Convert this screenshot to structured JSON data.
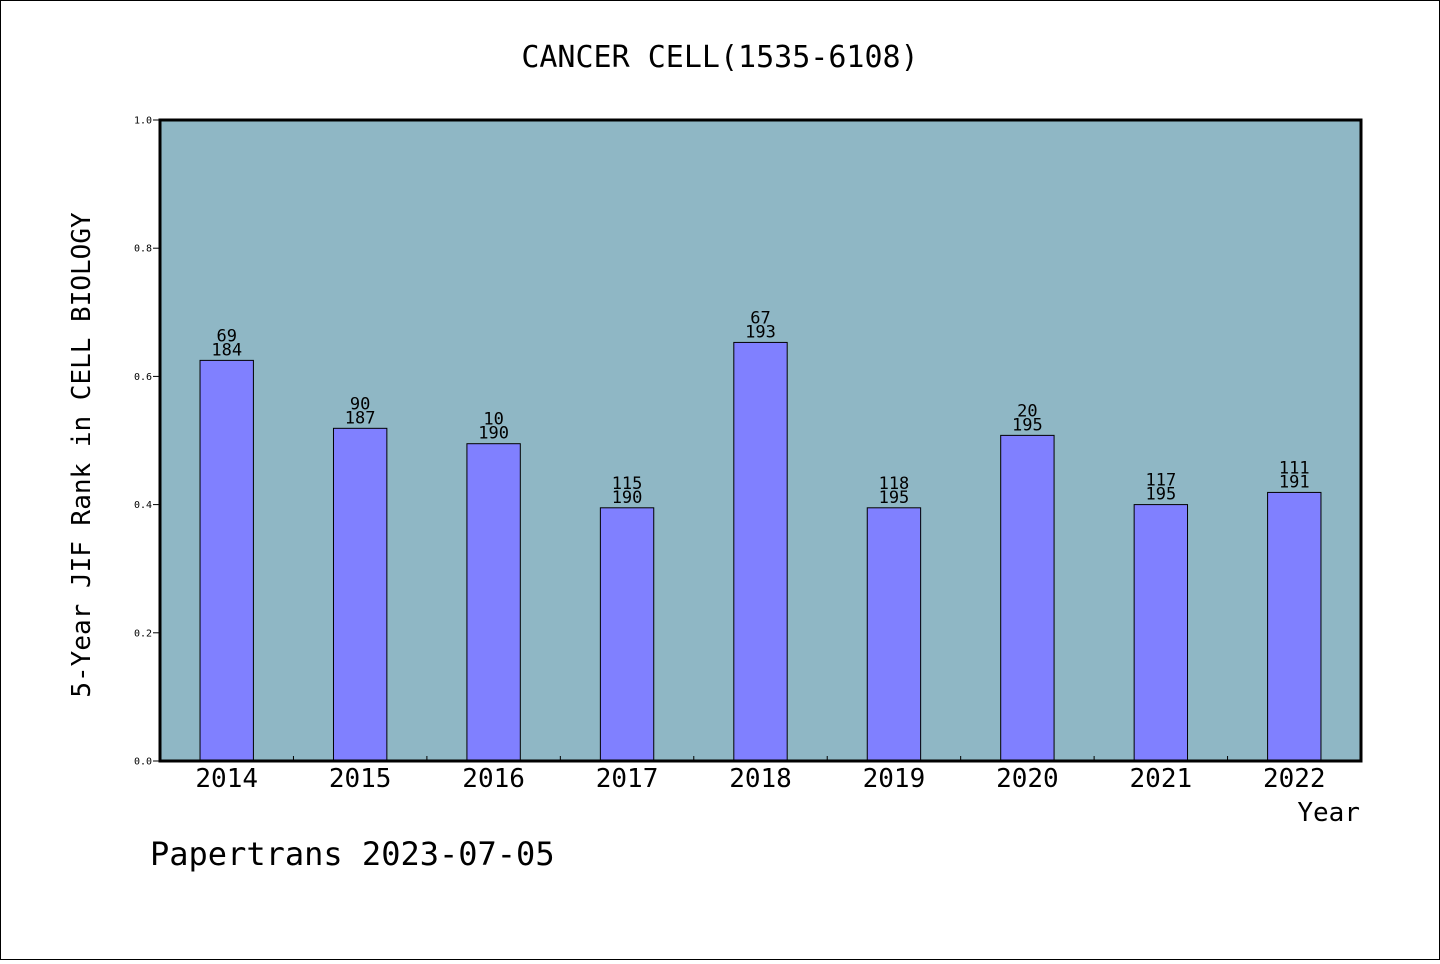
{
  "chart_data": {
    "type": "bar",
    "title": "CANCER CELL(1535-6108)",
    "xlabel": "Year",
    "ylabel": "5-Year JIF Rank in CELL BIOLOGY",
    "ylim": [
      0,
      1.0
    ],
    "yticks": [
      "0.0",
      "0.2",
      "0.4",
      "0.6",
      "0.8",
      "1.0"
    ],
    "categories": [
      "2014",
      "2015",
      "2016",
      "2017",
      "2018",
      "2019",
      "2020",
      "2021",
      "2022"
    ],
    "values": [
      0.625,
      0.519,
      0.495,
      0.395,
      0.653,
      0.395,
      0.508,
      0.4,
      0.419
    ],
    "labels_top": [
      "69",
      "90",
      "10",
      "115",
      "67",
      "118",
      "20",
      "117",
      "111"
    ],
    "labels_bottom": [
      "184",
      "187",
      "190",
      "190",
      "193",
      "195",
      "195",
      "195",
      "191"
    ],
    "grid": false,
    "colors": {
      "plot_bg": "#8fb7c5",
      "bar": "#8080ff",
      "bar_edge": "#000000"
    }
  },
  "footer": {
    "text": "Papertrans 2023-07-05"
  }
}
